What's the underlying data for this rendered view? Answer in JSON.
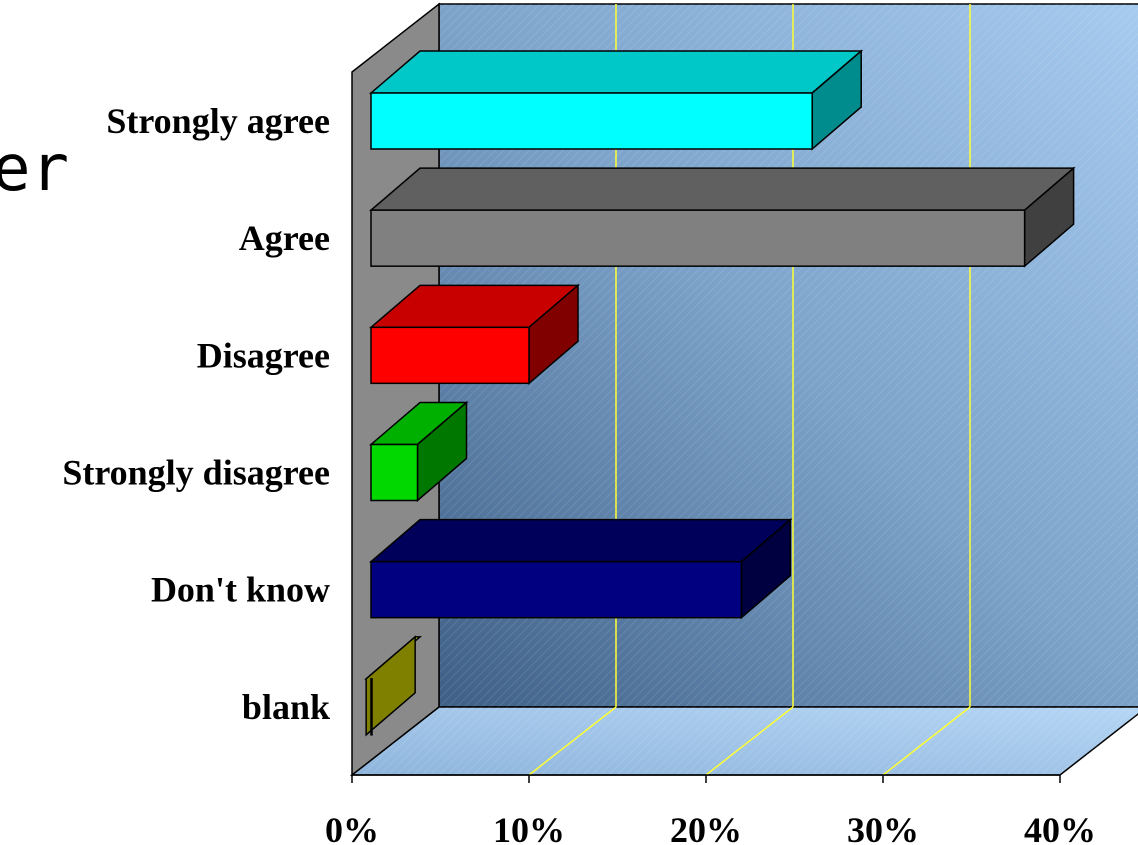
{
  "chart_data": {
    "type": "bar",
    "orientation": "horizontal",
    "style": "3d",
    "categories": [
      "Strongly agree",
      "Agree",
      "Disagree",
      "Strongly disagree",
      "Don't know",
      "blank"
    ],
    "values": [
      26,
      38,
      10,
      3.7,
      22,
      0.8
    ],
    "x_ticks": [
      "0%",
      "10%",
      "20%",
      "30%",
      "40%"
    ],
    "xlim": [
      0,
      40
    ],
    "grid": true,
    "legend": "none",
    "colors": {
      "front": [
        "#00FFFF",
        "#808080",
        "#FF0000",
        "#00D800",
        "#000080",
        "#FFFF00"
      ],
      "top": [
        "#00C8C8",
        "#606060",
        "#C80000",
        "#00B000",
        "#00005A",
        "#C8C800"
      ],
      "side": [
        "#008C8C",
        "#404040",
        "#800000",
        "#007800",
        "#000040",
        "#808000"
      ],
      "back_wall": "#7FA7CF",
      "floor": "#A6CCEE",
      "left_wall": "#8A8A8A",
      "gridline": "#FFFF33"
    }
  },
  "partial_glyph": "er"
}
